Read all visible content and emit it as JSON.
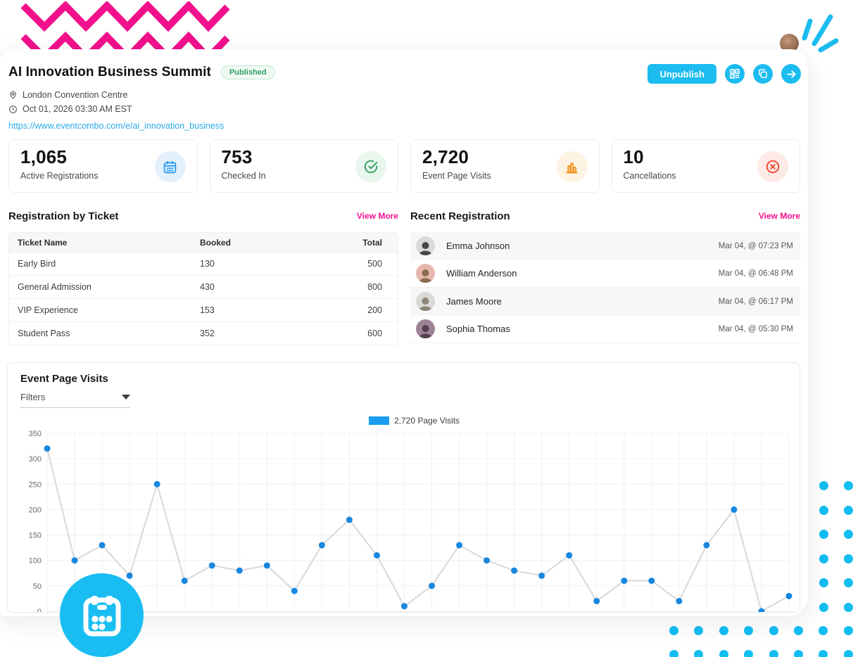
{
  "header": {
    "title": "AI Innovation Business Summit",
    "status_badge": "Published",
    "location": "London Convention Centre",
    "datetime": "Oct 01, 2026 03:30 AM EST",
    "url": "https://www.eventcombo.com/e/ai_innovation_business",
    "unpublish_label": "Unpublish"
  },
  "stats": [
    {
      "value": "1,065",
      "label": "Active Registrations",
      "icon": "calendar-icon",
      "color": "#2196f3",
      "bg": "#e4f1fd"
    },
    {
      "value": "753",
      "label": "Checked In",
      "icon": "check-circle-icon",
      "color": "#2e9e5b",
      "bg": "#e9f6ee"
    },
    {
      "value": "2,720",
      "label": "Event Page Visits",
      "icon": "bar-chart-icon",
      "color": "#f5921e",
      "bg": "#fdf3e2"
    },
    {
      "value": "10",
      "label": "Cancellations",
      "icon": "x-circle-icon",
      "color": "#f4432c",
      "bg": "#fdeae6"
    }
  ],
  "ticket_section": {
    "title": "Registration by Ticket",
    "view_more": "View More",
    "columns": [
      "Ticket Name",
      "Booked",
      "Total"
    ],
    "rows": [
      {
        "name": "Early Bird",
        "booked": "130",
        "total": "500"
      },
      {
        "name": "General Admission",
        "booked": "430",
        "total": "800"
      },
      {
        "name": "VIP Experience",
        "booked": "153",
        "total": "200"
      },
      {
        "name": "Student Pass",
        "booked": "352",
        "total": "600"
      }
    ]
  },
  "recent_section": {
    "title": "Recent Registration",
    "view_more": "View More",
    "items": [
      {
        "name": "Emma Johnson",
        "time": "Mar 04, @ 07:23 PM",
        "avatar_bg": "#d8dadc",
        "avatar_fg": "#4a4642"
      },
      {
        "name": "William Anderson",
        "time": "Mar 04, @ 06:48 PM",
        "avatar_bg": "#e7b7ae",
        "avatar_fg": "#8a6b52"
      },
      {
        "name": "James Moore",
        "time": "Mar 04, @ 06:17 PM",
        "avatar_bg": "#d9d9d7",
        "avatar_fg": "#8c8578"
      },
      {
        "name": "Sophia Thomas",
        "time": "Mar 04, @ 05:30 PM",
        "avatar_bg": "#9c8496",
        "avatar_fg": "#54404e"
      }
    ]
  },
  "chart_section": {
    "title": "Event Page Visits",
    "filters_label": "Filters",
    "legend_label": "2,720 Page Visits"
  },
  "chart_data": {
    "type": "line",
    "title": "Event Page Visits",
    "legend": [
      "2,720 Page Visits"
    ],
    "x": "28 unlabeled time intervals (x-axis labels not visible)",
    "values": [
      320,
      100,
      130,
      70,
      250,
      60,
      90,
      80,
      90,
      40,
      130,
      180,
      110,
      10,
      50,
      130,
      100,
      80,
      70,
      110,
      20,
      60,
      60,
      20,
      130,
      200,
      0,
      30
    ],
    "total": 2720,
    "ylim": [
      0,
      350
    ],
    "yticks": [
      0,
      50,
      100,
      150,
      200,
      250,
      300,
      350
    ],
    "grid": true,
    "legend_position": "top-center",
    "point_color": "#1787e0",
    "line_color": "#d8d8d8",
    "legend_color": "#1b9df0"
  },
  "colors": {
    "brand_cyan": "#1cbcf0",
    "brand_pink": "#f2108c",
    "link_blue": "#2baae8",
    "badge_green": "#2e9e63",
    "grid_gray": "#f0f0f2"
  }
}
